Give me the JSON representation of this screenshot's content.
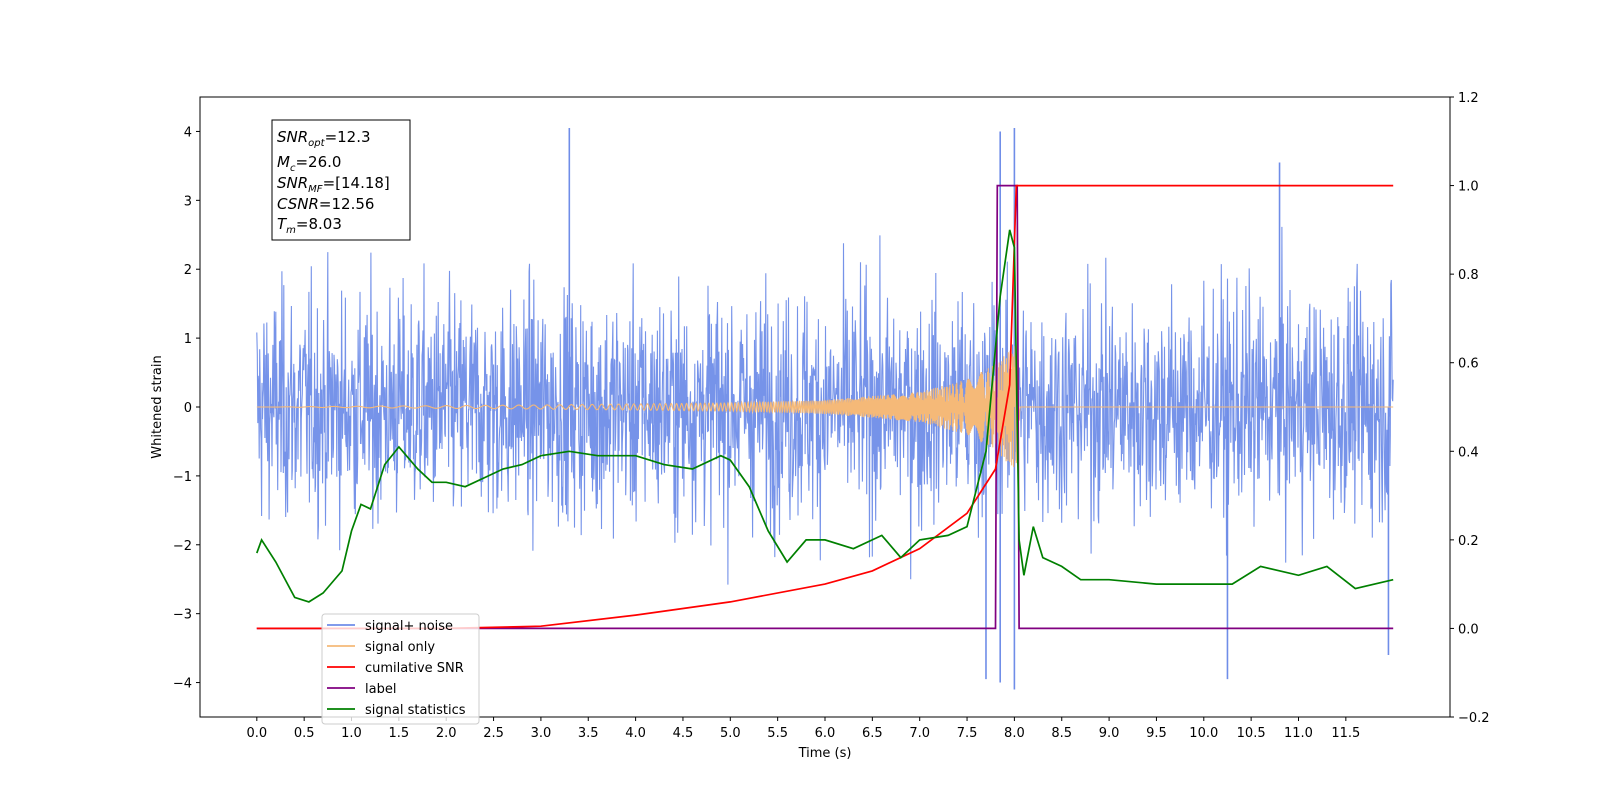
{
  "chart_data": {
    "type": "line",
    "xlabel": "Time (s)",
    "ylabel": "Whitened strain",
    "xlim": [
      -0.6,
      12.6
    ],
    "ylim": [
      -4.5,
      4.5
    ],
    "y2lim": [
      -0.2,
      1.2
    ],
    "x_ticks": [
      0.0,
      0.5,
      1.0,
      1.5,
      2.0,
      2.5,
      3.0,
      3.5,
      4.0,
      4.5,
      5.0,
      5.5,
      6.0,
      6.5,
      7.0,
      7.5,
      8.0,
      8.5,
      9.0,
      9.5,
      10.0,
      10.5,
      11.0,
      11.5
    ],
    "y_ticks": [
      -4,
      -3,
      -2,
      -1,
      0,
      1,
      2,
      3,
      4
    ],
    "y2_ticks": [
      -0.2,
      0.0,
      0.2,
      0.4,
      0.6,
      0.8,
      1.0,
      1.2
    ],
    "grid": false,
    "legend_position": "lower-left",
    "stats_box": {
      "snr_opt": {
        "base": "SNR",
        "sub": "opt",
        "value": "=12.3"
      },
      "mc": {
        "base": "M",
        "sub": "c",
        "value": "=26.0"
      },
      "snr_mf": {
        "base": "SNR",
        "sub": "MF",
        "value": "=[14.18]"
      },
      "csnr": {
        "base": "CSNR",
        "value": "=12.56"
      },
      "tm": {
        "base": "T",
        "sub": "m",
        "value": "=8.03"
      }
    },
    "series": [
      {
        "name": "signal+ noise",
        "axis": "left",
        "color": "#6f8de8",
        "description_note": "dense noisy trace spanning t=0..12, amplitude mostly within about -2.5..2.5 with spikes reaching about +4.1 and -4.1",
        "x_range": [
          0.0,
          12.0
        ],
        "envelope": [
          2.5,
          -2.5
        ],
        "peaks": [
          {
            "x": 3.3,
            "y": 4.05
          },
          {
            "x": 7.85,
            "y": 4.0
          },
          {
            "x": 8.0,
            "y": 4.05
          },
          {
            "x": 10.8,
            "y": 3.55
          },
          {
            "x": 7.7,
            "y": -3.95
          },
          {
            "x": 7.85,
            "y": -4.0
          },
          {
            "x": 8.0,
            "y": -4.1
          },
          {
            "x": 10.25,
            "y": -3.95
          },
          {
            "x": 11.95,
            "y": -3.6
          }
        ]
      },
      {
        "name": "signal only",
        "axis": "left",
        "color": "#f5b978",
        "description_note": "chirp: near-zero amplitude early, growing toward merger at t≈8.0",
        "points": [
          [
            0.0,
            0.0
          ],
          [
            3.0,
            0.03
          ],
          [
            5.0,
            0.06
          ],
          [
            6.0,
            0.1
          ],
          [
            7.0,
            0.22
          ],
          [
            7.5,
            0.4
          ],
          [
            7.8,
            0.62
          ],
          [
            7.95,
            0.85
          ],
          [
            8.02,
            0.9
          ],
          [
            8.06,
            0.0
          ],
          [
            12.0,
            0.0
          ]
        ]
      },
      {
        "name": "cumilative SNR",
        "axis": "right",
        "color": "#ff0000",
        "points": [
          [
            0.0,
            0.0
          ],
          [
            2.0,
            0.0
          ],
          [
            3.0,
            0.005
          ],
          [
            4.0,
            0.03
          ],
          [
            5.0,
            0.06
          ],
          [
            6.0,
            0.1
          ],
          [
            6.5,
            0.13
          ],
          [
            7.0,
            0.18
          ],
          [
            7.5,
            0.26
          ],
          [
            7.8,
            0.36
          ],
          [
            7.95,
            0.55
          ],
          [
            8.02,
            1.0
          ],
          [
            12.0,
            1.0
          ]
        ]
      },
      {
        "name": "label",
        "axis": "right",
        "color": "#800080",
        "points": [
          [
            0.0,
            0.0
          ],
          [
            7.8,
            0.0
          ],
          [
            7.82,
            1.0
          ],
          [
            8.03,
            1.0
          ],
          [
            8.05,
            0.0
          ],
          [
            12.0,
            0.0
          ]
        ]
      },
      {
        "name": "signal statistics",
        "axis": "right",
        "color": "#008000",
        "points": [
          [
            0.0,
            0.17
          ],
          [
            0.05,
            0.2
          ],
          [
            0.2,
            0.15
          ],
          [
            0.4,
            0.07
          ],
          [
            0.55,
            0.06
          ],
          [
            0.7,
            0.08
          ],
          [
            0.9,
            0.13
          ],
          [
            1.0,
            0.22
          ],
          [
            1.1,
            0.28
          ],
          [
            1.2,
            0.27
          ],
          [
            1.35,
            0.37
          ],
          [
            1.5,
            0.41
          ],
          [
            1.7,
            0.36
          ],
          [
            1.85,
            0.33
          ],
          [
            2.0,
            0.33
          ],
          [
            2.2,
            0.32
          ],
          [
            2.4,
            0.34
          ],
          [
            2.6,
            0.36
          ],
          [
            2.8,
            0.37
          ],
          [
            3.0,
            0.39
          ],
          [
            3.3,
            0.4
          ],
          [
            3.6,
            0.39
          ],
          [
            4.0,
            0.39
          ],
          [
            4.3,
            0.37
          ],
          [
            4.6,
            0.36
          ],
          [
            4.9,
            0.39
          ],
          [
            5.0,
            0.38
          ],
          [
            5.2,
            0.32
          ],
          [
            5.4,
            0.22
          ],
          [
            5.6,
            0.15
          ],
          [
            5.8,
            0.2
          ],
          [
            6.0,
            0.2
          ],
          [
            6.3,
            0.18
          ],
          [
            6.6,
            0.21
          ],
          [
            6.8,
            0.16
          ],
          [
            7.0,
            0.2
          ],
          [
            7.3,
            0.21
          ],
          [
            7.5,
            0.23
          ],
          [
            7.7,
            0.4
          ],
          [
            7.85,
            0.75
          ],
          [
            7.95,
            0.9
          ],
          [
            8.0,
            0.86
          ],
          [
            8.05,
            0.2
          ],
          [
            8.1,
            0.12
          ],
          [
            8.2,
            0.23
          ],
          [
            8.3,
            0.16
          ],
          [
            8.5,
            0.14
          ],
          [
            8.7,
            0.11
          ],
          [
            9.0,
            0.11
          ],
          [
            9.5,
            0.1
          ],
          [
            10.0,
            0.1
          ],
          [
            10.3,
            0.1
          ],
          [
            10.6,
            0.14
          ],
          [
            11.0,
            0.12
          ],
          [
            11.3,
            0.14
          ],
          [
            11.6,
            0.09
          ],
          [
            12.0,
            0.11
          ]
        ]
      }
    ],
    "legend": [
      {
        "label": "signal+ noise",
        "color": "#6f8de8"
      },
      {
        "label": "signal only",
        "color": "#f5b978"
      },
      {
        "label": "cumilative SNR",
        "color": "#ff0000"
      },
      {
        "label": "label",
        "color": "#800080"
      },
      {
        "label": "signal statistics",
        "color": "#008000"
      }
    ]
  }
}
